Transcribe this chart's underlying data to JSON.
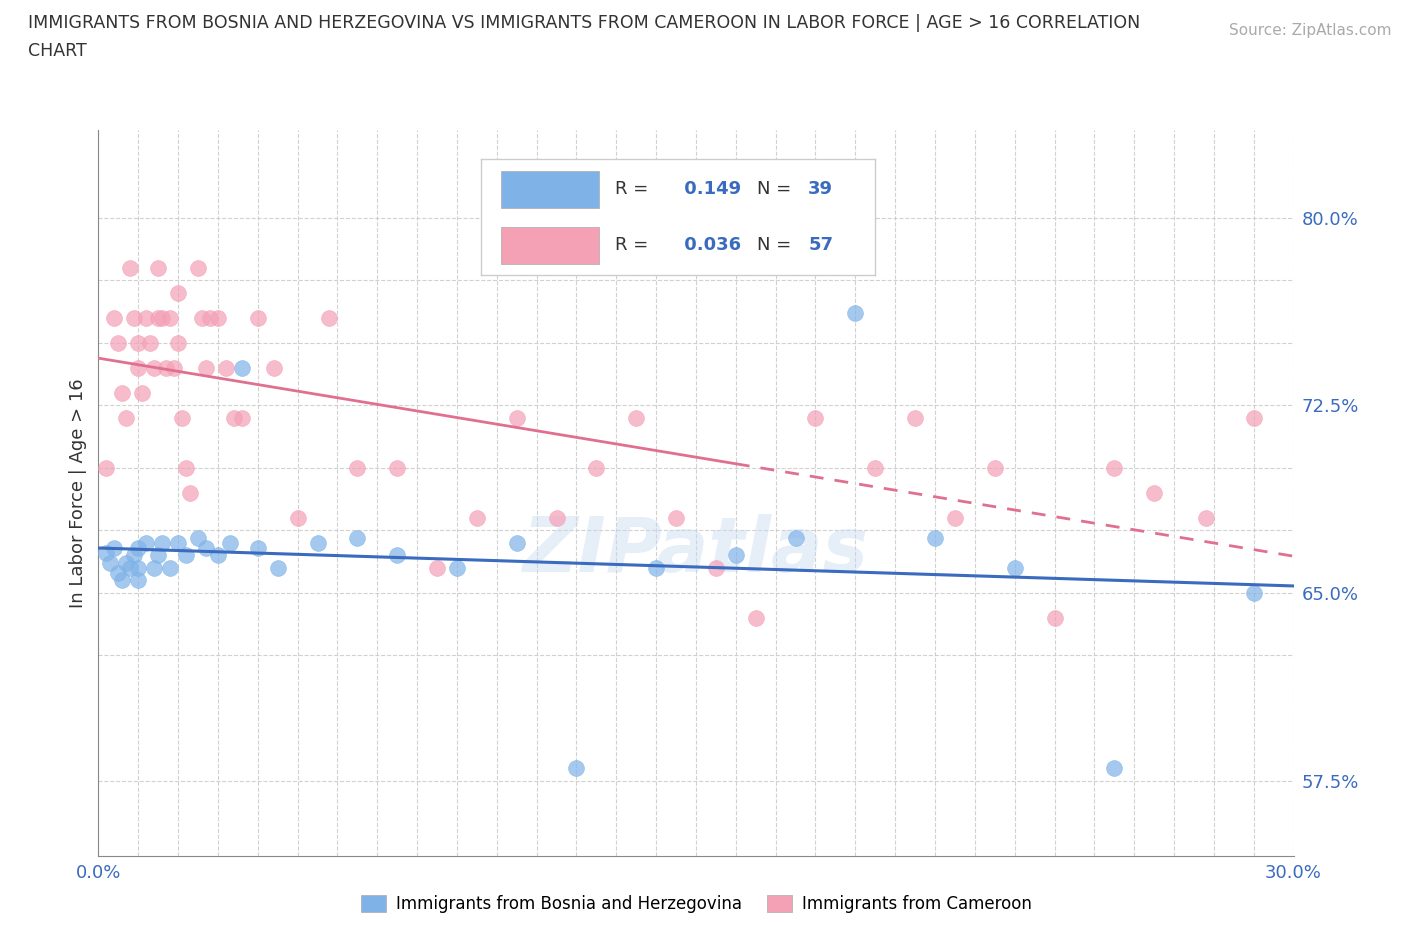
{
  "title_line1": "IMMIGRANTS FROM BOSNIA AND HERZEGOVINA VS IMMIGRANTS FROM CAMEROON IN LABOR FORCE | AGE > 16 CORRELATION",
  "title_line2": "CHART",
  "source_text": "Source: ZipAtlas.com",
  "ylabel": "In Labor Force | Age > 16",
  "xlim": [
    0.0,
    0.3
  ],
  "ylim": [
    0.545,
    0.835
  ],
  "ytick_positions": [
    0.575,
    0.625,
    0.65,
    0.675,
    0.7,
    0.725,
    0.75,
    0.775,
    0.8
  ],
  "ytick_labels": [
    "57.5%",
    "",
    "65.0%",
    "",
    "",
    "72.5%",
    "",
    "",
    "80.0%"
  ],
  "bosnia_color": "#7fb3e8",
  "cameroon_color": "#f4a0b5",
  "bosnia_line_color": "#3a6bbf",
  "cameroon_line_color": "#e07090",
  "bosnia_R": 0.149,
  "bosnia_N": 39,
  "cameroon_R": 0.036,
  "cameroon_N": 57,
  "legend_label_bosnia": "Immigrants from Bosnia and Herzegovina",
  "legend_label_cameroon": "Immigrants from Cameroon",
  "watermark": "ZIPatlas",
  "bosnia_x": [
    0.002,
    0.003,
    0.004,
    0.005,
    0.006,
    0.007,
    0.008,
    0.009,
    0.01,
    0.01,
    0.01,
    0.012,
    0.014,
    0.015,
    0.016,
    0.018,
    0.02,
    0.022,
    0.025,
    0.027,
    0.03,
    0.033,
    0.036,
    0.04,
    0.045,
    0.055,
    0.065,
    0.075,
    0.09,
    0.105,
    0.12,
    0.14,
    0.16,
    0.175,
    0.19,
    0.21,
    0.23,
    0.255,
    0.29
  ],
  "bosnia_y": [
    0.666,
    0.662,
    0.668,
    0.658,
    0.655,
    0.662,
    0.66,
    0.665,
    0.668,
    0.66,
    0.655,
    0.67,
    0.66,
    0.665,
    0.67,
    0.66,
    0.67,
    0.665,
    0.672,
    0.668,
    0.665,
    0.67,
    0.74,
    0.668,
    0.66,
    0.67,
    0.672,
    0.665,
    0.66,
    0.67,
    0.58,
    0.66,
    0.665,
    0.672,
    0.762,
    0.672,
    0.66,
    0.58,
    0.65
  ],
  "cameroon_x": [
    0.002,
    0.004,
    0.005,
    0.006,
    0.007,
    0.008,
    0.009,
    0.01,
    0.01,
    0.011,
    0.012,
    0.013,
    0.014,
    0.015,
    0.015,
    0.016,
    0.017,
    0.018,
    0.019,
    0.02,
    0.02,
    0.021,
    0.022,
    0.023,
    0.025,
    0.026,
    0.027,
    0.028,
    0.03,
    0.032,
    0.034,
    0.036,
    0.04,
    0.044,
    0.05,
    0.058,
    0.065,
    0.075,
    0.085,
    0.095,
    0.105,
    0.115,
    0.125,
    0.135,
    0.145,
    0.155,
    0.165,
    0.18,
    0.195,
    0.205,
    0.215,
    0.225,
    0.24,
    0.255,
    0.265,
    0.278,
    0.29
  ],
  "cameroon_y": [
    0.7,
    0.76,
    0.75,
    0.73,
    0.72,
    0.78,
    0.76,
    0.75,
    0.74,
    0.73,
    0.76,
    0.75,
    0.74,
    0.78,
    0.76,
    0.76,
    0.74,
    0.76,
    0.74,
    0.77,
    0.75,
    0.72,
    0.7,
    0.69,
    0.78,
    0.76,
    0.74,
    0.76,
    0.76,
    0.74,
    0.72,
    0.72,
    0.76,
    0.74,
    0.68,
    0.76,
    0.7,
    0.7,
    0.66,
    0.68,
    0.72,
    0.68,
    0.7,
    0.72,
    0.68,
    0.66,
    0.64,
    0.72,
    0.7,
    0.72,
    0.68,
    0.7,
    0.64,
    0.7,
    0.69,
    0.68,
    0.72
  ]
}
